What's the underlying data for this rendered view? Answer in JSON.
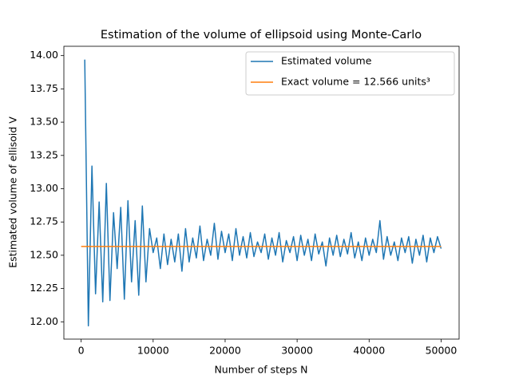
{
  "chart_data": {
    "type": "line",
    "title": "Estimation of the volume of ellipsoid using Monte-Carlo",
    "xlabel": "Number of steps N",
    "ylabel": "Estimated volume of ellisoid V",
    "xlim": [
      -2400,
      52500
    ],
    "ylim": [
      11.87,
      14.07
    ],
    "xticks": [
      0,
      10000,
      20000,
      30000,
      40000,
      50000
    ],
    "yticks": [
      {
        "value": 12,
        "label": "12.00"
      },
      12.25,
      {
        "value": 12.5,
        "label": "12.50"
      },
      12.75,
      {
        "value": 13,
        "label": "13.00"
      },
      13.25,
      {
        "value": 13.5,
        "label": "13.50"
      },
      13.75,
      {
        "value": 14,
        "label": "14.00"
      }
    ],
    "legend": "upper right",
    "series": [
      {
        "name": "Estimated volume",
        "color": "#1f77b4",
        "x": [
          500,
          1000,
          1500,
          2000,
          2500,
          3000,
          3500,
          4000,
          4500,
          5000,
          5500,
          6000,
          6500,
          7000,
          7500,
          8000,
          8500,
          9000,
          9500,
          10000,
          10500,
          11000,
          11500,
          12000,
          12500,
          13000,
          13500,
          14000,
          14500,
          15000,
          15500,
          16000,
          16500,
          17000,
          17500,
          18000,
          18500,
          19000,
          19500,
          20000,
          20500,
          21000,
          21500,
          22000,
          22500,
          23000,
          23500,
          24000,
          24500,
          25000,
          25500,
          26000,
          26500,
          27000,
          27500,
          28000,
          28500,
          29000,
          29500,
          30000,
          30500,
          31000,
          31500,
          32000,
          32500,
          33000,
          33500,
          34000,
          34500,
          35000,
          35500,
          36000,
          36500,
          37000,
          37500,
          38000,
          38500,
          39000,
          39500,
          40000,
          40500,
          41000,
          41500,
          42000,
          42500,
          43000,
          43500,
          44000,
          44500,
          45000,
          45500,
          46000,
          46500,
          47000,
          47500,
          48000,
          48500,
          49000,
          49500,
          50000
        ],
        "values": [
          13.97,
          11.97,
          13.17,
          12.21,
          12.9,
          12.15,
          13.04,
          12.16,
          12.82,
          12.4,
          12.86,
          12.17,
          12.91,
          12.3,
          12.76,
          12.2,
          12.87,
          12.3,
          12.7,
          12.52,
          12.63,
          12.4,
          12.66,
          12.43,
          12.62,
          12.45,
          12.66,
          12.38,
          12.7,
          12.45,
          12.63,
          12.48,
          12.72,
          12.46,
          12.62,
          12.5,
          12.74,
          12.47,
          12.68,
          12.52,
          12.66,
          12.46,
          12.7,
          12.5,
          12.64,
          12.48,
          12.67,
          12.49,
          12.6,
          12.52,
          12.66,
          12.47,
          12.63,
          12.5,
          12.67,
          12.45,
          12.61,
          12.52,
          12.64,
          12.46,
          12.65,
          12.5,
          12.62,
          12.46,
          12.66,
          12.51,
          12.6,
          12.42,
          12.63,
          12.5,
          12.65,
          12.49,
          12.62,
          12.51,
          12.67,
          12.48,
          12.6,
          12.46,
          12.63,
          12.5,
          12.62,
          12.52,
          12.76,
          12.47,
          12.64,
          12.5,
          12.6,
          12.46,
          12.63,
          12.52,
          12.64,
          12.44,
          12.62,
          12.5,
          12.65,
          12.45,
          12.63,
          12.52,
          12.64,
          12.55
        ]
      },
      {
        "name": "Exact volume = 12.566 units³",
        "color": "#ff7f0e",
        "x": [
          0,
          50000
        ],
        "values": [
          12.566,
          12.566
        ]
      }
    ]
  }
}
